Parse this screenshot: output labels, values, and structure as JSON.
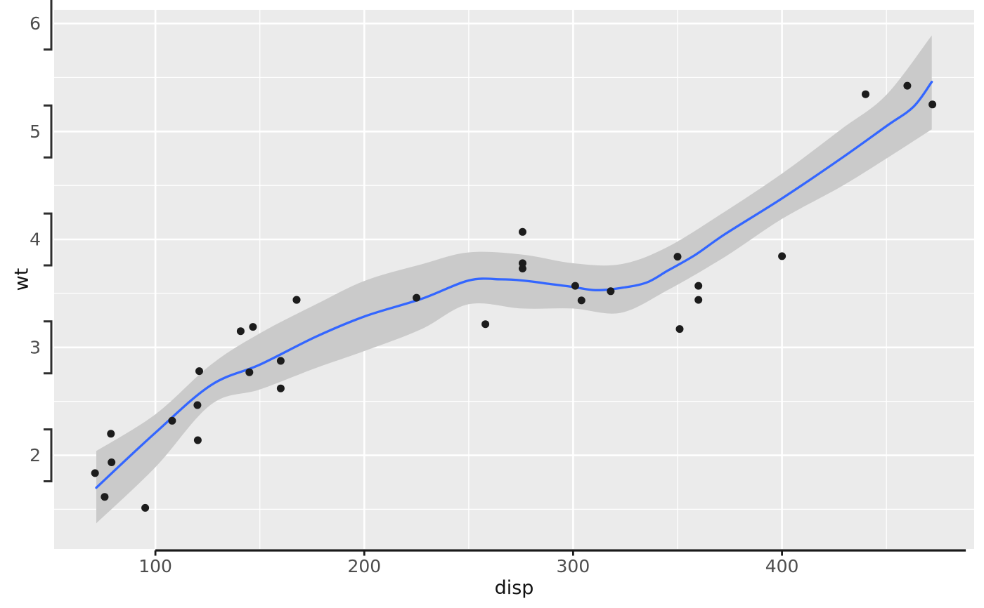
{
  "figure": {
    "background": "#ffffff"
  },
  "panel": {
    "background": "#ebebeb"
  },
  "grid": {
    "major_color": "#ffffff",
    "major_width": 2.6,
    "minor_color": "#ffffff",
    "minor_width": 1.3
  },
  "axes": {
    "x": {
      "title": "disp",
      "breaks": [
        100,
        200,
        300,
        400
      ],
      "minor_breaks": [
        150,
        250,
        350,
        450
      ],
      "line_color": "#1a1a1a",
      "line_span": [
        100,
        488
      ],
      "tick_color": "#1a1a1a",
      "label_color": "#4d4d4d"
    },
    "y": {
      "title": "wt",
      "breaks": [
        2,
        3,
        4,
        5,
        6
      ],
      "minor_breaks": [
        1.5,
        2.5,
        3.5,
        4.5,
        5.5
      ],
      "bracket_color": "#2e2e2e",
      "bracket_halfwidth_units": 0.25,
      "label_color": "#4d4d4d"
    }
  },
  "chart_data": {
    "type": "scatter",
    "title": "",
    "xlabel": "disp",
    "ylabel": "wt",
    "xlim": [
      51.5,
      492
    ],
    "ylim": [
      1.132,
      6.127
    ],
    "x_ticks": [
      100,
      200,
      300,
      400
    ],
    "y_ticks": [
      2,
      3,
      4,
      5,
      6
    ],
    "grid": "on",
    "legend": "none",
    "point_style": {
      "color": "#1c1c1c",
      "radius": 5.5
    },
    "points": [
      [
        160,
        2.62
      ],
      [
        160,
        2.875
      ],
      [
        108,
        2.32
      ],
      [
        258,
        3.215
      ],
      [
        360,
        3.44
      ],
      [
        225,
        3.46
      ],
      [
        360,
        3.57
      ],
      [
        146.7,
        3.19
      ],
      [
        140.8,
        3.15
      ],
      [
        167.6,
        3.44
      ],
      [
        167.6,
        3.44
      ],
      [
        275.8,
        4.07
      ],
      [
        275.8,
        3.73
      ],
      [
        275.8,
        3.78
      ],
      [
        472,
        5.25
      ],
      [
        460,
        5.424
      ],
      [
        440,
        5.345
      ],
      [
        78.7,
        2.2
      ],
      [
        75.7,
        1.615
      ],
      [
        71.1,
        1.835
      ],
      [
        120.1,
        2.465
      ],
      [
        318,
        3.52
      ],
      [
        304,
        3.435
      ],
      [
        350,
        3.84
      ],
      [
        400,
        3.845
      ],
      [
        79,
        1.935
      ],
      [
        120.3,
        2.14
      ],
      [
        95.1,
        1.513
      ],
      [
        351,
        3.17
      ],
      [
        145,
        2.77
      ],
      [
        301,
        3.57
      ],
      [
        121,
        2.78
      ]
    ],
    "smooth_line": {
      "method": "loess",
      "color": "#3366ff",
      "width": 3.3,
      "points": [
        [
          71.7,
          1.7
        ],
        [
          100,
          2.21
        ],
        [
          126.6,
          2.65
        ],
        [
          150,
          2.84
        ],
        [
          177,
          3.1
        ],
        [
          200.6,
          3.29
        ],
        [
          227.5,
          3.45
        ],
        [
          250,
          3.62
        ],
        [
          265.5,
          3.63
        ],
        [
          275.6,
          3.62
        ],
        [
          288,
          3.59
        ],
        [
          299.8,
          3.56
        ],
        [
          310.6,
          3.53
        ],
        [
          322.7,
          3.55
        ],
        [
          335.1,
          3.6
        ],
        [
          345.2,
          3.71
        ],
        [
          358.7,
          3.86
        ],
        [
          372.8,
          4.05
        ],
        [
          400,
          4.38
        ],
        [
          428.3,
          4.75
        ],
        [
          450,
          5.05
        ],
        [
          463,
          5.23
        ],
        [
          471.7,
          5.46
        ]
      ]
    },
    "confidence_ribbon": {
      "fill": "#cacaca",
      "upper": [
        [
          71.7,
          2.04
        ],
        [
          100,
          2.38
        ],
        [
          126.6,
          2.84
        ],
        [
          150,
          3.13
        ],
        [
          177,
          3.4
        ],
        [
          200.6,
          3.62
        ],
        [
          227.5,
          3.77
        ],
        [
          250,
          3.88
        ],
        [
          275.6,
          3.86
        ],
        [
          299.8,
          3.78
        ],
        [
          322.7,
          3.77
        ],
        [
          345.2,
          3.93
        ],
        [
          372.8,
          4.26
        ],
        [
          400,
          4.61
        ],
        [
          428.3,
          5.02
        ],
        [
          450,
          5.34
        ],
        [
          471.7,
          5.89
        ]
      ],
      "lower": [
        [
          71.7,
          1.37
        ],
        [
          100,
          1.89
        ],
        [
          126.6,
          2.47
        ],
        [
          150,
          2.61
        ],
        [
          177,
          2.81
        ],
        [
          200.6,
          2.97
        ],
        [
          227.5,
          3.17
        ],
        [
          250,
          3.4
        ],
        [
          275.6,
          3.36
        ],
        [
          299.8,
          3.36
        ],
        [
          322.7,
          3.32
        ],
        [
          345.2,
          3.53
        ],
        [
          372.8,
          3.84
        ],
        [
          400,
          4.19
        ],
        [
          428.3,
          4.49
        ],
        [
          450,
          4.75
        ],
        [
          471.7,
          5.02
        ]
      ]
    }
  }
}
